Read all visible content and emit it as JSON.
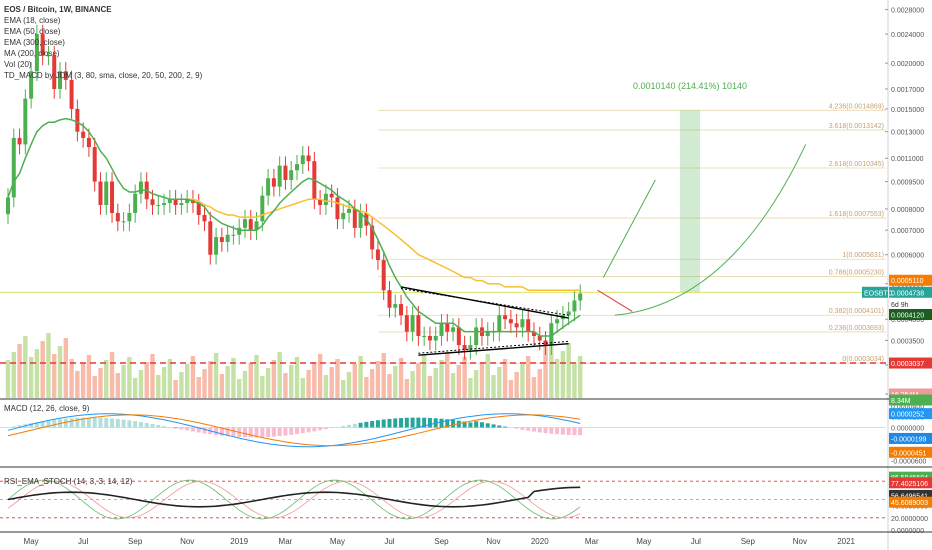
{
  "legend": {
    "title": "EOS / Bitcoin, 1W, BINANCE",
    "indicators": [
      "EMA (18, close)",
      "EMA (50, close)",
      "EMA (300, close)",
      "MA (200, close)",
      "Vol (20)",
      "TD_MACD by JDM (3, 80, sma, close, 20, 50, 200, 2, 9)"
    ]
  },
  "panes": {
    "macd_label": "MACD (12, 26, close, 9)",
    "rsi_label": "RSI_EMA_STOCH (14, 3, 3, 14, 12)"
  },
  "annotations": {
    "target": "0.0010140 (214.41%) 10140",
    "ticker": "EOSBTC",
    "countdown": "6d 9h"
  },
  "fib_levels": [
    {
      "label": "4.236(0.0014869)",
      "price": 0.0014869
    },
    {
      "label": "3.618(0.0013142)",
      "price": 0.0013142
    },
    {
      "label": "2.618(0.0010345)",
      "price": 0.0010345
    },
    {
      "label": "1.618(0.0007553)",
      "price": 0.0007553
    },
    {
      "label": "1(0.0005831)",
      "price": 0.0005831
    },
    {
      "label": "0.786(0.0005230)",
      "price": 0.000523
    },
    {
      "label": "0.382(0.0004101)",
      "price": 0.0004101
    },
    {
      "label": "0.236(0.0003693)",
      "price": 0.0003693
    },
    {
      "label": "0(0.0003034)",
      "price": 0.0003034
    }
  ],
  "price_tags": [
    {
      "text": "0.0005110",
      "price": 0.000511,
      "color": "#f57c00"
    },
    {
      "text": "0.0004738",
      "price": 0.0004738,
      "color": "#26a69a"
    },
    {
      "text": "0.0004120",
      "price": 0.000412,
      "color": "#1b5e20"
    },
    {
      "text": "0.0003037",
      "price": 0.0003037,
      "color": "#e53935"
    },
    {
      "text": "16.254M",
      "volume": 16.254,
      "color": "#ef9a9a"
    },
    {
      "text": "8.34M",
      "volume": 8.34,
      "color": "#4caf50"
    }
  ],
  "macd_tags": [
    {
      "text": "0.0000252",
      "value": 2.52e-05,
      "color": "#2196f3"
    },
    {
      "text": "-0.0000199",
      "value": -1.99e-05,
      "color": "#1e88e5"
    },
    {
      "text": "-0.0000451",
      "value": -4.51e-05,
      "color": "#f57c00"
    }
  ],
  "rsi_tags": [
    {
      "text": "86.5945694",
      "value": 86.5945694,
      "color": "#4caf50"
    },
    {
      "text": "77.4025106",
      "value": 77.4025106,
      "color": "#e53935"
    },
    {
      "text": "56.6496541",
      "value": 56.6496541,
      "color": "#333333"
    },
    {
      "text": "45.6089003",
      "value": 45.6089003,
      "color": "#f57c00"
    }
  ],
  "chart_data": {
    "type": "candlestick",
    "symbol": "EOS / Bitcoin",
    "timeframe": "1W",
    "exchange": "BINANCE",
    "price_axis": {
      "ticks": [
        "0.0028000",
        "0.0024000",
        "0.0020000",
        "0.0017000",
        "0.0015000",
        "0.0013000",
        "0.0011000",
        "0.0009500",
        "0.0008000",
        "0.0007000",
        "0.0006000",
        "0.0005000",
        "0.0004000",
        "0.0003500",
        "0.0003000",
        "0.0002500"
      ],
      "scale": "log",
      "ylim": [
        0.00025,
        0.0029
      ]
    },
    "macd_axis": {
      "ticks": [
        "0.0000400",
        "0.0000200",
        "0.0000000",
        "-0.0000200",
        "-0.0000400",
        "-0.0000600"
      ],
      "ylim": [
        -7e-05,
        5e-05
      ]
    },
    "rsi_axis": {
      "ticks": [
        "100.0000000",
        "80.0000000",
        "60.0000000",
        "40.0000000",
        "20.0000000",
        "0.0000000"
      ],
      "ylim": [
        0,
        100
      ]
    },
    "x_axis": {
      "labels": [
        "May",
        "Jul",
        "Sep",
        "Nov",
        "2019",
        "Mar",
        "May",
        "Jul",
        "Sep",
        "Nov",
        "2020",
        "Mar",
        "May",
        "Jul",
        "Sep",
        "Nov",
        "2021"
      ],
      "label_weeks": [
        4,
        13,
        22,
        31,
        40,
        48,
        57,
        66,
        75,
        84,
        92,
        101,
        110,
        119,
        128,
        137,
        145
      ]
    },
    "weeks_plotted": 100,
    "price_series": {
      "name": "EOSBTC weekly close (approx.)",
      "close": [
        0.00086,
        0.00125,
        0.0012,
        0.0016,
        0.0019,
        0.0024,
        0.0021,
        0.0021,
        0.0017,
        0.0019,
        0.0018,
        0.0015,
        0.0013,
        0.00125,
        0.00118,
        0.00095,
        0.00082,
        0.00095,
        0.00078,
        0.00074,
        0.00074,
        0.00078,
        0.00088,
        0.00095,
        0.00085,
        0.00082,
        0.00082,
        0.00083,
        0.00085,
        0.00082,
        0.00083,
        0.00085,
        0.00083,
        0.00077,
        0.00074,
        0.0006,
        0.00067,
        0.00065,
        0.00068,
        0.00068,
        0.00071,
        0.00075,
        0.0007,
        0.00074,
        0.00087,
        0.00097,
        0.00092,
        0.00105,
        0.00096,
        0.00102,
        0.00106,
        0.00112,
        0.00108,
        0.00085,
        0.00082,
        0.00088,
        0.00086,
        0.00075,
        0.00078,
        0.0008,
        0.00071,
        0.00078,
        0.00072,
        0.00062,
        0.00058,
        0.00048,
        0.00043,
        0.00044,
        0.00041,
        0.00037,
        0.00041,
        0.00036,
        0.00036,
        0.00035,
        0.00036,
        0.00039,
        0.00037,
        0.00038,
        0.00034,
        0.00033,
        0.00034,
        0.00038,
        0.00036,
        0.00037,
        0.00037,
        0.00041,
        0.0004,
        0.00039,
        0.00038,
        0.0004,
        0.00037,
        0.00036,
        0.00035,
        0.00034,
        0.00039,
        0.0004,
        0.00041,
        0.00042,
        0.00045,
        0.00047
      ]
    },
    "ema18": [
      0.00086,
      0.00095,
      0.001,
      0.0011,
      0.0012,
      0.0013,
      0.00135,
      0.00138,
      0.00138,
      0.0014,
      0.00141,
      0.0014,
      0.00138,
      0.00135,
      0.0013,
      0.00123,
      0.00115,
      0.0011,
      0.00103,
      0.00096,
      0.00091,
      0.00089,
      0.00089,
      0.0009,
      0.0009,
      0.00088,
      0.00087,
      0.00086,
      0.00085,
      0.00085,
      0.00085,
      0.00085,
      0.00084,
      0.00083,
      0.00081,
      0.00077,
      0.00075,
      0.00073,
      0.00072,
      0.00071,
      0.0007,
      0.0007,
      0.0007,
      0.0007,
      0.00072,
      0.00076,
      0.00079,
      0.00083,
      0.00086,
      0.00089,
      0.00092,
      0.00095,
      0.00097,
      0.00096,
      0.00094,
      0.00092,
      0.0009,
      0.00087,
      0.00085,
      0.00083,
      0.0008,
      0.00078,
      0.00075,
      0.00071,
      0.00066,
      0.00061,
      0.00056,
      0.00052,
      0.00049,
      0.00046,
      0.00044,
      0.00042,
      0.00041,
      0.0004,
      0.00039,
      0.00039,
      0.00039,
      0.00039,
      0.00038,
      0.00037,
      0.00037,
      0.00037,
      0.00037,
      0.00037,
      0.00037,
      0.00037,
      0.00037,
      0.00037,
      0.00037,
      0.00037,
      0.00037,
      0.00037,
      0.00036,
      0.00036,
      0.00036,
      0.00037,
      0.00038,
      0.00039,
      0.0004,
      0.00041
    ],
    "ema50": [
      null,
      null,
      null,
      null,
      null,
      null,
      null,
      null,
      null,
      null,
      null,
      null,
      null,
      null,
      null,
      null,
      null,
      null,
      null,
      null,
      null,
      null,
      null,
      null,
      null,
      null,
      null,
      null,
      null,
      null,
      null,
      0.00085,
      0.00085,
      0.00084,
      0.00082,
      0.00081,
      0.00079,
      0.00078,
      0.00077,
      0.00077,
      0.00076,
      0.00076,
      0.00076,
      0.00076,
      0.00077,
      0.00078,
      0.00079,
      0.0008,
      0.00081,
      0.00082,
      0.00083,
      0.00084,
      0.00085,
      0.00085,
      0.00085,
      0.00084,
      0.00084,
      0.00083,
      0.00082,
      0.00081,
      0.0008,
      0.00079,
      0.00078,
      0.00076,
      0.00074,
      0.00072,
      0.0007,
      0.00068,
      0.00066,
      0.00064,
      0.00062,
      0.0006,
      0.00059,
      0.00058,
      0.00057,
      0.00056,
      0.00055,
      0.00054,
      0.00053,
      0.00052,
      0.00052,
      0.00051,
      0.00051,
      0.0005,
      0.0005,
      0.0005,
      0.00049,
      0.00049,
      0.00049,
      0.00049,
      0.00048,
      0.00048,
      0.00048,
      0.00048,
      0.00048,
      0.00048,
      0.00048,
      0.00048,
      0.00048,
      0.00048
    ]
  }
}
